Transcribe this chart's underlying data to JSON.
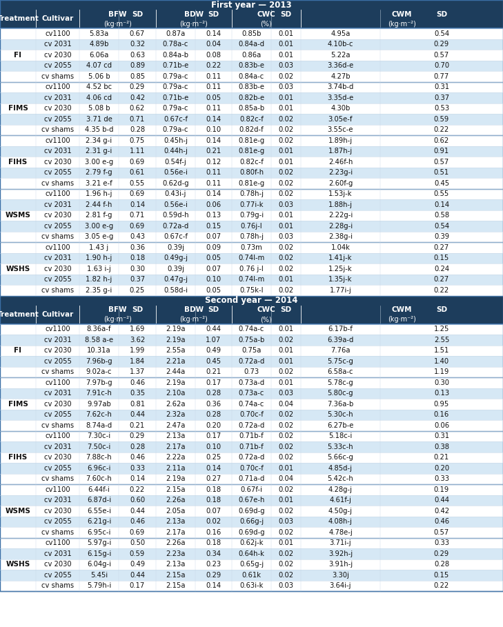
{
  "title_year1": "First year — 2013",
  "title_year2": "Second year — 2014",
  "header_bg": "#1d3d5c",
  "header_fg": "#ffffff",
  "row_alt1": "#ffffff",
  "row_alt2": "#d6e8f5",
  "sep_color": "#4a7aaa",
  "year1_data": [
    [
      "FI",
      "cv1100",
      "5.83a",
      "0.67",
      "0.87a",
      "0.14",
      "0.85b",
      "0.01",
      "4.95a",
      "0.54"
    ],
    [
      "FI",
      "cv 2031",
      "4.89b",
      "0.32",
      "0.78a-c",
      "0.04",
      "0.84a-d",
      "0.01",
      "4.10b-c",
      "0.29"
    ],
    [
      "FI",
      "cv 2030",
      "6.06a",
      "0.63",
      "0.84a-b",
      "0.08",
      "0.86a",
      "0.01",
      "5.22a",
      "0.57"
    ],
    [
      "FI",
      "cv 2055",
      "4.07 cd",
      "0.89",
      "0.71b-e",
      "0.22",
      "0.83b-e",
      "0.03",
      "3.36d-e",
      "0.70"
    ],
    [
      "FI",
      "cv shams",
      "5.06 b",
      "0.85",
      "0.79a-c",
      "0.11",
      "0.84a-c",
      "0.02",
      "4.27b",
      "0.77"
    ],
    [
      "FIMS",
      "cv1100",
      "4.52 bc",
      "0.29",
      "0.79a-c",
      "0.11",
      "0.83b-e",
      "0.03",
      "3.74b-d",
      "0.31"
    ],
    [
      "FIMS",
      "cv 2031",
      "4.06 cd",
      "0.42",
      "0.71b-e",
      "0.05",
      "0.82b-e",
      "0.01",
      "3.35d-e",
      "0.37"
    ],
    [
      "FIMS",
      "cv 2030",
      "5.08 b",
      "0.62",
      "0.79a-c",
      "0.11",
      "0.85a-b",
      "0.01",
      "4.30b",
      "0.53"
    ],
    [
      "FIMS",
      "cv 2055",
      "3.71 de",
      "0.71",
      "0.67c-f",
      "0.14",
      "0.82c-f",
      "0.02",
      "3.05e-f",
      "0.59"
    ],
    [
      "FIMS",
      "cv shams",
      "4.35 b-d",
      "0.28",
      "0.79a-c",
      "0.10",
      "0.82d-f",
      "0.02",
      "3.55c-e",
      "0.22"
    ],
    [
      "FIHS",
      "cv1100",
      "2.34 g-i",
      "0.75",
      "0.45h-j",
      "0.14",
      "0.81e-g",
      "0.02",
      "1.89h-j",
      "0.62"
    ],
    [
      "FIHS",
      "cv 2031",
      "2.31 g-i",
      "1.11",
      "0.44h-j",
      "0.21",
      "0.81e-g",
      "0.01",
      "1.87h-j",
      "0.91"
    ],
    [
      "FIHS",
      "cv 2030",
      "3.00 e-g",
      "0.69",
      "0.54f-j",
      "0.12",
      "0.82c-f",
      "0.01",
      "2.46f-h",
      "0.57"
    ],
    [
      "FIHS",
      "cv 2055",
      "2.79 f-g",
      "0.61",
      "0.56e-i",
      "0.11",
      "0.80f-h",
      "0.02",
      "2.23g-i",
      "0.51"
    ],
    [
      "FIHS",
      "cv shams",
      "3.21 e-f",
      "0.55",
      "0.62d-g",
      "0.11",
      "0.81e-g",
      "0.02",
      "2.60f-g",
      "0.45"
    ],
    [
      "WSMS",
      "cv1100",
      "1.96 h-j",
      "0.69",
      "0.43i-j",
      "0.14",
      "0.78h-j",
      "0.02",
      "1.53j-k",
      "0.55"
    ],
    [
      "WSMS",
      "cv 2031",
      "2.44 f-h",
      "0.14",
      "0.56e-i",
      "0.06",
      "0.77i-k",
      "0.03",
      "1.88h-j",
      "0.14"
    ],
    [
      "WSMS",
      "cv 2030",
      "2.81 f-g",
      "0.71",
      "0.59d-h",
      "0.13",
      "0.79g-i",
      "0.01",
      "2.22g-i",
      "0.58"
    ],
    [
      "WSMS",
      "cv 2055",
      "3.00 e-g",
      "0.69",
      "0.72a-d",
      "0.15",
      "0.76j-l",
      "0.01",
      "2.28g-i",
      "0.54"
    ],
    [
      "WSMS",
      "cv shams",
      "3.05 e-g",
      "0.43",
      "0.67c-f",
      "0.07",
      "0.78h-j",
      "0.03",
      "2.38g-i",
      "0.39"
    ],
    [
      "WSHS",
      "cv1100",
      "1.43 j",
      "0.36",
      "0.39j",
      "0.09",
      "0.73m",
      "0.02",
      "1.04k",
      "0.27"
    ],
    [
      "WSHS",
      "cv 2031",
      "1.90 h-j",
      "0.18",
      "0.49g-j",
      "0.05",
      "0.74l-m",
      "0.02",
      "1.41j-k",
      "0.15"
    ],
    [
      "WSHS",
      "cv 2030",
      "1.63 i-j",
      "0.30",
      "0.39j",
      "0.07",
      "0.76 j-l",
      "0.02",
      "1.25j-k",
      "0.24"
    ],
    [
      "WSHS",
      "cv 2055",
      "1.82 h-j",
      "0.37",
      "0.47g-j",
      "0.10",
      "0.74l-m",
      "0.01",
      "1.35j-k",
      "0.27"
    ],
    [
      "WSHS",
      "cv shams",
      "2.35 g-i",
      "0.25",
      "0.58d-i",
      "0.05",
      "0.75k-l",
      "0.02",
      "1.77i-j",
      "0.22"
    ]
  ],
  "year2_data": [
    [
      "FI",
      "cv1100",
      "8.36a-f",
      "1.69",
      "2.19a",
      "0.44",
      "0.74a-c",
      "0.01",
      "6.17b-f",
      "1.25"
    ],
    [
      "FI",
      "cv 2031",
      "8.58 a-e",
      "3.62",
      "2.19a",
      "1.07",
      "0.75a-b",
      "0.02",
      "6.39a-d",
      "2.55"
    ],
    [
      "FI",
      "cv 2030",
      "10.31a",
      "1.99",
      "2.55a",
      "0.49",
      "0.75a",
      "0.01",
      "7.76a",
      "1.51"
    ],
    [
      "FI",
      "cv 2055",
      "7.96b-g",
      "1.84",
      "2.21a",
      "0.45",
      "0.72a-d",
      "0.01",
      "5.75c-g",
      "1.40"
    ],
    [
      "FI",
      "cv shams",
      "9.02a-c",
      "1.37",
      "2.44a",
      "0.21",
      "0.73",
      "0.02",
      "6.58a-c",
      "1.19"
    ],
    [
      "FIMS",
      "cv1100",
      "7.97b-g",
      "0.46",
      "2.19a",
      "0.17",
      "0.73a-d",
      "0.01",
      "5.78c-g",
      "0.30"
    ],
    [
      "FIMS",
      "cv 2031",
      "7.91c-h",
      "0.35",
      "2.10a",
      "0.28",
      "0.73a-c",
      "0.03",
      "5.80c-g",
      "0.13"
    ],
    [
      "FIMS",
      "cv 2030",
      "9.97ab",
      "0.81",
      "2.62a",
      "0.36",
      "0.74a-c",
      "0.04",
      "7.36a-b",
      "0.95"
    ],
    [
      "FIMS",
      "cv 2055",
      "7.62c-h",
      "0.44",
      "2.32a",
      "0.28",
      "0.70c-f",
      "0.02",
      "5.30c-h",
      "0.16"
    ],
    [
      "FIMS",
      "cv shams",
      "8.74a-d",
      "0.21",
      "2.47a",
      "0.20",
      "0.72a-d",
      "0.02",
      "6.27b-e",
      "0.06"
    ],
    [
      "FIHS",
      "cv1100",
      "7.30c-i",
      "0.29",
      "2.13a",
      "0.17",
      "0.71b-f",
      "0.02",
      "5.18c-i",
      "0.31"
    ],
    [
      "FIHS",
      "cv 2031",
      "7.50c-i",
      "0.28",
      "2.17a",
      "0.10",
      "0.71b-f",
      "0.02",
      "5.33c-h",
      "0.38"
    ],
    [
      "FIHS",
      "cv 2030",
      "7.88c-h",
      "0.46",
      "2.22a",
      "0.25",
      "0.72a-d",
      "0.02",
      "5.66c-g",
      "0.21"
    ],
    [
      "FIHS",
      "cv 2055",
      "6.96c-i",
      "0.33",
      "2.11a",
      "0.14",
      "0.70c-f",
      "0.01",
      "4.85d-j",
      "0.20"
    ],
    [
      "FIHS",
      "cv shams",
      "7.60c-h",
      "0.14",
      "2.19a",
      "0.27",
      "0.71a-d",
      "0.04",
      "5.42c-h",
      "0.33"
    ],
    [
      "WSMS",
      "cv1100",
      "6.44f-i",
      "0.22",
      "2.15a",
      "0.18",
      "0.67f-i",
      "0.02",
      "4.28g-j",
      "0.19"
    ],
    [
      "WSMS",
      "cv 2031",
      "6.87d-i",
      "0.60",
      "2.26a",
      "0.18",
      "0.67e-h",
      "0.01",
      "4.61f-j",
      "0.44"
    ],
    [
      "WSMS",
      "cv 2030",
      "6.55e-i",
      "0.44",
      "2.05a",
      "0.07",
      "0.69d-g",
      "0.02",
      "4.50g-j",
      "0.42"
    ],
    [
      "WSMS",
      "cv 2055",
      "6.21g-i",
      "0.46",
      "2.13a",
      "0.02",
      "0.66g-j",
      "0.03",
      "4.08h-j",
      "0.46"
    ],
    [
      "WSMS",
      "cv shams",
      "6.95c-i",
      "0.69",
      "2.17a",
      "0.16",
      "0.69d-g",
      "0.02",
      "4.78e-j",
      "0.57"
    ],
    [
      "WSHS",
      "cv1100",
      "5.97g-i",
      "0.50",
      "2.26a",
      "0.18",
      "0.62j-k",
      "0.01",
      "3.71i-j",
      "0.33"
    ],
    [
      "WSHS",
      "cv 2031",
      "6.15g-i",
      "0.59",
      "2.23a",
      "0.34",
      "0.64h-k",
      "0.02",
      "3.92h-j",
      "0.29"
    ],
    [
      "WSHS",
      "cv 2030",
      "6.04g-i",
      "0.49",
      "2.13a",
      "0.23",
      "0.65g-j",
      "0.02",
      "3.91h-j",
      "0.28"
    ],
    [
      "WSHS",
      "cv 2055",
      "5.45i",
      "0.44",
      "2.15a",
      "0.29",
      "0.61k",
      "0.02",
      "3.30j",
      "0.15"
    ],
    [
      "WSHS",
      "cv shams",
      "5.79h-i",
      "0.17",
      "2.15a",
      "0.14",
      "0.63i-k",
      "0.03",
      "3.64i-j",
      "0.22"
    ]
  ]
}
